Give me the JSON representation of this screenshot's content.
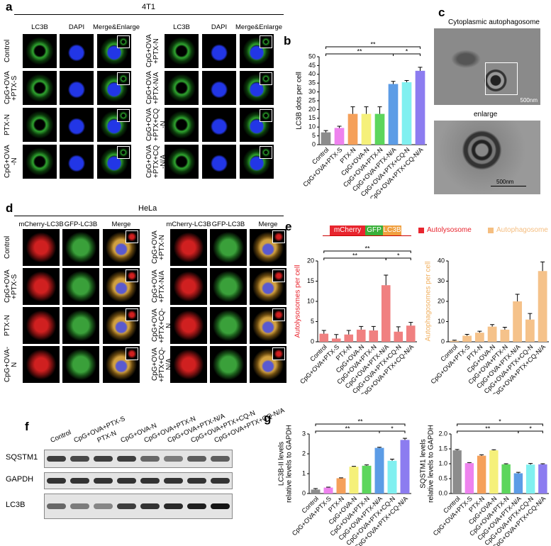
{
  "panel_a": {
    "label": "a",
    "title": "4T1",
    "columns": [
      "LC3B",
      "DAPI",
      "Merge&Enlarge",
      "LC3B",
      "DAPI",
      "Merge&Enlarge"
    ],
    "rows_left": [
      "Control",
      "CpG+OVA+PTX-S",
      "PTX-N",
      "CpG+OVA-N"
    ],
    "rows_right": [
      "CpG+OVA+PTX-N",
      "CpG+OVA+PTX-N/A",
      "CpG+OVA+PTX+CQ-N",
      "CpG+OVA+PTX+CQ-N/A"
    ]
  },
  "panel_b": {
    "label": "b"
  },
  "panel_c": {
    "label": "c",
    "top_title": "Cytoplasmic autophagosome",
    "top_scale": "500nm",
    "bottom_title": "enlarge",
    "bottom_scale": "500nm"
  },
  "panel_d": {
    "label": "d",
    "title": "HeLa",
    "columns": [
      "mCherry-LC3B",
      "GFP-LC3B",
      "Merge",
      "mCherry-LC3B",
      "GFP-LC3B",
      "Merge"
    ],
    "rows_left": [
      "Control",
      "CpG+OVA+PTX-S",
      "PTX-N",
      "CpG+OVA-N"
    ],
    "rows_right": [
      "CpG+OVA+PTX-N",
      "CpG+OVA+PTX-N/A",
      "CpG+OVA+PTX+CQ-N",
      "CpG+OVA+PTX+CQ-N/A"
    ]
  },
  "panel_e": {
    "label": "e",
    "construct": [
      "mCherry",
      "GFP",
      "LC3B"
    ],
    "legend": [
      {
        "name": "Autolysosome",
        "color": "#e8252e"
      },
      {
        "name": "Autophagosome",
        "color": "#f5be80"
      }
    ]
  },
  "panel_f": {
    "label": "f",
    "lanes": [
      "Control",
      "CpG+OVA+PTX-S",
      "PTX-N",
      "CpG+OVA-N",
      "CpG+OVA+PTX-N",
      "CpG+OVA+PTX-N/A",
      "CpG+OVA+PTX+CQ-N",
      "CpG+OVA+PTX+CQ-N/A"
    ],
    "bands": [
      "SQSTM1",
      "GAPDH",
      "LC3B"
    ]
  },
  "panel_g": {
    "label": "g"
  },
  "chart_data": [
    {
      "type": "bar",
      "ylabel": [
        "LC3B dots per cell"
      ],
      "categories": [
        "Control",
        "CpG+OVA+PTX-S",
        "PTX-N",
        "CpG+OVA-N",
        "CpG+OVA+PTX-N",
        "CpG+OVA+PTX-N/A",
        "CpG+OVA+PTX+CQ-N",
        "CpG+OVA+PTX+CQ-N/A"
      ],
      "values": [
        7,
        9.5,
        17.5,
        17.5,
        17.5,
        34.5,
        35.5,
        42
      ],
      "errors": [
        1,
        1,
        4,
        4,
        4,
        1.5,
        1,
        2
      ],
      "colors": [
        "#8c8c8c",
        "#ee82ee",
        "#f5a05a",
        "#f5f07a",
        "#5cd65c",
        "#5c9ce6",
        "#80f0f0",
        "#8c7cf0"
      ],
      "ylim": [
        0,
        50
      ],
      "yticks": [
        0,
        5,
        10,
        15,
        20,
        25,
        30,
        35,
        40,
        45,
        50
      ],
      "annotations": [
        {
          "from": 0,
          "to": 7,
          "text": "**"
        },
        {
          "from": 0,
          "to": 5,
          "text": "**"
        },
        {
          "from": 5,
          "to": 7,
          "text": "*"
        }
      ]
    },
    {
      "type": "bar",
      "ylabel": [
        "Autolysosomes per cell"
      ],
      "label_color": "#e8252e",
      "categories": [
        "Control",
        "CpG+OVA+PTX-S",
        "PTX-N",
        "CpG+OVA-N",
        "CpG+OVA+PTX-N",
        "CpG+OVA+PTX-N/A",
        "CpG+OVA+PTX+CQ-N",
        "CpG+OVA+PTX+CQ-N/A"
      ],
      "values": [
        2,
        0.8,
        1.8,
        3,
        2.8,
        14,
        2.5,
        4
      ],
      "errors": [
        0.8,
        1,
        1,
        0.8,
        1,
        2.5,
        1.2,
        0.8
      ],
      "color": "#f08080",
      "ylim": [
        0,
        20
      ],
      "yticks": [
        0,
        5,
        10,
        15,
        20
      ],
      "annotations": [
        {
          "from": 0,
          "to": 7,
          "text": "**"
        },
        {
          "from": 0,
          "to": 5,
          "text": "**"
        },
        {
          "from": 5,
          "to": 7,
          "text": "*"
        }
      ]
    },
    {
      "type": "bar",
      "ylabel": [
        "Autophagosomes per cell"
      ],
      "label_color": "#f0b060",
      "categories": [
        "Control",
        "CpG+OVA+PTX-S",
        "PTX-N",
        "CpG+OVA-N",
        "CpG+OVA+PTX-N",
        "CpG+OVA+PTX-N/A",
        "CpG+OVA+PTX+CQ-N",
        "CpG+OVA+PTX+CQ-N/A"
      ],
      "values": [
        0.5,
        3,
        4.5,
        7.5,
        6,
        20,
        11,
        35
      ],
      "errors": [
        0.3,
        0.7,
        0.7,
        1,
        1.2,
        3.5,
        3,
        4.5
      ],
      "color": "#f5c28a",
      "ylim": [
        0,
        40
      ],
      "yticks": [
        0,
        10,
        20,
        30,
        40
      ]
    },
    {
      "type": "bar",
      "ylabel": [
        "LC3B-II levels",
        "relative levels to GAPDH"
      ],
      "categories": [
        "Control",
        "CpG+OVA+PTX-S",
        "PTX-N",
        "CpG+OVA-N",
        "CpG+OVA+PTX-N",
        "CpG+OVA+PTX-N/A",
        "CpG+OVA+PTX+CQ-N",
        "CpG+OVA+PTX+CQ-N/A"
      ],
      "values": [
        0.2,
        0.3,
        0.77,
        1.35,
        1.4,
        2.3,
        1.65,
        2.7
      ],
      "errors": [
        0.05,
        0.02,
        0.02,
        0.02,
        0.04,
        0.03,
        0.08,
        0.08
      ],
      "colors": [
        "#8c8c8c",
        "#ee82ee",
        "#f5a05a",
        "#f5f07a",
        "#5cd65c",
        "#5c9ce6",
        "#80f0f0",
        "#8c7cf0"
      ],
      "ylim": [
        0,
        3
      ],
      "yticks": [
        0,
        1,
        2,
        3
      ],
      "annotations": [
        {
          "from": 0,
          "to": 7,
          "text": "**"
        },
        {
          "from": 0,
          "to": 5,
          "text": "**"
        },
        {
          "from": 5,
          "to": 7,
          "text": "*"
        }
      ]
    },
    {
      "type": "bar",
      "ylabel": [
        "SQSTM1 levels",
        "relative levels to GAPDH"
      ],
      "categories": [
        "Control",
        "CpG+OVA+PTX-S",
        "PTX-N",
        "CpG+OVA-N",
        "CpG+OVA+PTX-N",
        "CpG+OVA+PTX-N/A",
        "CpG+OVA+PTX+CQ-N",
        "CpG+OVA+PTX+CQ-N/A"
      ],
      "values": [
        1.45,
        1.02,
        1.27,
        1.45,
        0.98,
        0.68,
        0.97,
        0.98
      ],
      "errors": [
        0.03,
        0.02,
        0.03,
        0.02,
        0.02,
        0.03,
        0.04,
        0.02
      ],
      "colors": [
        "#8c8c8c",
        "#ee82ee",
        "#f5a05a",
        "#f5f07a",
        "#5cd65c",
        "#5c9ce6",
        "#80f0f0",
        "#8c7cf0"
      ],
      "ylim": [
        0,
        2
      ],
      "yticks": [
        {
          "value": 0,
          "label": "0.0"
        },
        0.5,
        {
          "value": 1,
          "label": "1.0"
        },
        1.5,
        {
          "value": 2,
          "label": "2.0"
        }
      ],
      "annotations": [
        {
          "from": 0,
          "to": 7,
          "text": "*"
        },
        {
          "from": 0,
          "to": 5,
          "text": "**"
        },
        {
          "from": 5,
          "to": 7,
          "text": "*"
        }
      ]
    }
  ]
}
